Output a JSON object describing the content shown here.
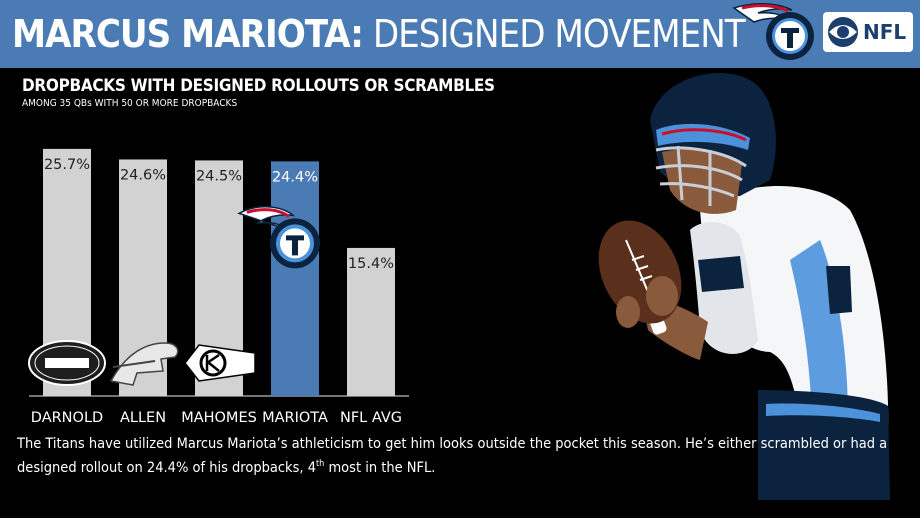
{
  "header": {
    "title_bold": "MARCUS MARIOTA:",
    "title_light": "DESIGNED MOVEMENT",
    "network": "NFL"
  },
  "chart_data": {
    "type": "bar",
    "title": "DROPBACKS WITH DESIGNED ROLLOUTS OR SCRAMBLES",
    "subtitle": "AMONG 35 QBs WITH 50 OR MORE DROPBACKS",
    "categories": [
      "DARNOLD",
      "ALLEN",
      "MAHOMES",
      "MARIOTA",
      "NFL AVG"
    ],
    "values": [
      25.7,
      24.6,
      24.5,
      24.4,
      15.4
    ],
    "value_labels": [
      "25.7%",
      "24.6%",
      "24.5%",
      "24.4%",
      "15.4%"
    ],
    "team_logos": [
      "jets-logo",
      "bills-logo",
      "chiefs-logo",
      "titans-logo",
      ""
    ],
    "highlight": "MARIOTA",
    "bar_color": "#d2d2d2",
    "highlight_color": "#4b7bb5",
    "ylim": [
      0,
      26
    ],
    "grid": false,
    "legend": "none"
  },
  "footnote": {
    "text_1": "The Titans have utilized Marcus Mariota’s athleticism to get him looks outside the pocket this season. He’s either scrambled or had a designed rollout on 24.4% of his dropbacks, 4",
    "superscript": "th",
    "text_2": " most in the NFL."
  },
  "colors": {
    "background": "#000000",
    "header": "#4b7bb5",
    "titans_navy": "#0c2340",
    "titans_red": "#c8102e"
  }
}
